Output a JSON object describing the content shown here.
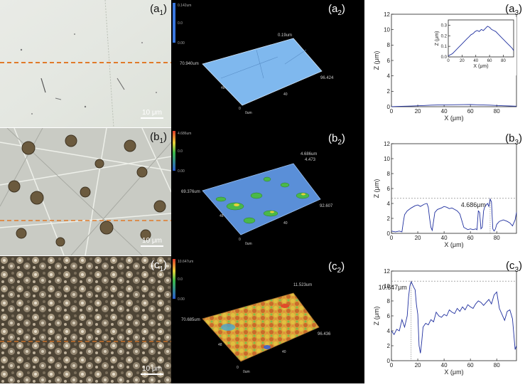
{
  "panels": {
    "a1": {
      "label_main": "(a",
      "label_sub": "1",
      "label_end": ")",
      "scale": "10 μm"
    },
    "b1": {
      "label_main": "(b",
      "label_sub": "1",
      "label_end": ")",
      "scale": "10 μm"
    },
    "c1": {
      "label_main": "(c",
      "label_sub": "1",
      "label_end": ")",
      "scale": "10 μm"
    },
    "a2": {
      "label_main": "(a",
      "label_sub": "2",
      "label_end": ")",
      "ticks": {
        "x": "96.424",
        "y": "70.940um",
        "z": "0.19um",
        "y2": "48",
        "x2": "40",
        "o": "0",
        "o2": "0um"
      },
      "colorbar": {
        "top": "0.142um",
        "mid": "0.0",
        "bottom": "0.00"
      }
    },
    "b2": {
      "label_main": "(b",
      "label_sub": "2",
      "label_end": ")",
      "ticks": {
        "x": "92.607",
        "y": "69.376um",
        "z": "4.473",
        "z2": "4.686um",
        "y2": "48",
        "x2": "40",
        "o": "0",
        "o2": "0um"
      },
      "colorbar": {
        "top": "4.686um",
        "mid": "0.0",
        "bottom": "0.00"
      }
    },
    "c2": {
      "label_main": "(c",
      "label_sub": "2",
      "label_end": ")",
      "ticks": {
        "x": "96.436",
        "y": "70.685um",
        "z": "11.523um",
        "y2": "48",
        "x2": "40",
        "o": "0",
        "o2": "0um"
      },
      "colorbar": {
        "top": "10.647um",
        "mid": "0.0",
        "bottom": "0.00"
      }
    },
    "a3": {
      "label_main": "(a",
      "label_sub": "3",
      "label_end": ")"
    },
    "b3": {
      "label_main": "(b",
      "label_sub": "3",
      "label_end": ")"
    },
    "c3": {
      "label_main": "(c",
      "label_sub": "3",
      "label_end": ")"
    }
  },
  "chart_data": [
    {
      "id": "a3",
      "type": "line",
      "xlabel": "X (μm)",
      "ylabel": "Z (μm)",
      "xlim": [
        0,
        95
      ],
      "ylim": [
        0,
        12
      ],
      "xticks": [
        0,
        20,
        40,
        60,
        80
      ],
      "yticks": [
        0,
        2,
        4,
        6,
        8,
        10,
        12
      ],
      "series": [
        {
          "color": "#1f2f9f",
          "x": [
            0,
            5,
            10,
            15,
            20,
            25,
            30,
            35,
            40,
            45,
            50,
            55,
            60,
            65,
            70,
            75,
            80,
            85,
            90,
            95
          ],
          "y": [
            0.01,
            0.04,
            0.06,
            0.08,
            0.12,
            0.16,
            0.2,
            0.22,
            0.24,
            0.25,
            0.26,
            0.27,
            0.28,
            0.25,
            0.22,
            0.2,
            0.16,
            0.12,
            0.09,
            0.06
          ]
        }
      ],
      "inset": {
        "xlabel": "X (μm)",
        "ylabel": "Z (μm)",
        "xlim": [
          0,
          95
        ],
        "ylim": [
          0,
          0.35
        ],
        "xticks": [
          0,
          20,
          40,
          60,
          80
        ],
        "yticks": [
          0.0,
          0.1,
          0.2,
          0.3
        ],
        "ytick_labels": [
          "0.0",
          "0.1",
          "0.2",
          "0.3"
        ],
        "series": [
          {
            "color": "#1f2f9f",
            "x": [
              0,
              3,
              6,
              9,
              12,
              15,
              18,
              21,
              24,
              27,
              30,
              33,
              36,
              39,
              42,
              45,
              48,
              51,
              54,
              57,
              60,
              63,
              66,
              69,
              72,
              75,
              78,
              81,
              84,
              87,
              90,
              93,
              95
            ],
            "y": [
              0.01,
              0.02,
              0.03,
              0.05,
              0.07,
              0.09,
              0.11,
              0.13,
              0.15,
              0.17,
              0.19,
              0.21,
              0.22,
              0.24,
              0.25,
              0.24,
              0.26,
              0.25,
              0.27,
              0.29,
              0.28,
              0.26,
              0.25,
              0.24,
              0.22,
              0.2,
              0.18,
              0.16,
              0.14,
              0.12,
              0.1,
              0.08,
              0.06
            ]
          }
        ]
      }
    },
    {
      "id": "b3",
      "type": "line",
      "xlabel": "X (μm)",
      "ylabel": "Z (μm)",
      "xlim": [
        0,
        95
      ],
      "ylim": [
        0,
        12
      ],
      "xticks": [
        0,
        20,
        40,
        60,
        80
      ],
      "yticks": [
        0,
        2,
        4,
        6,
        8,
        10,
        12
      ],
      "annotation": {
        "text": "4.686μm",
        "x": 75,
        "y": 4.686
      },
      "series": [
        {
          "color": "#1f2f9f",
          "x": [
            0,
            3,
            6,
            8,
            9,
            10,
            12,
            15,
            18,
            20,
            22,
            25,
            27,
            28,
            29,
            30,
            31,
            33,
            35,
            38,
            40,
            42,
            44,
            46,
            48,
            50,
            52,
            55,
            58,
            60,
            62,
            64,
            65,
            66,
            67,
            68,
            69,
            70,
            71,
            72,
            73,
            74,
            75,
            76,
            77,
            78,
            79,
            80,
            82,
            85,
            88,
            90,
            92,
            94,
            95
          ],
          "y": [
            0.3,
            0.2,
            0.3,
            0.2,
            1.5,
            2.5,
            3.0,
            3.4,
            3.7,
            3.8,
            3.6,
            3.9,
            4.0,
            3.5,
            2.0,
            0.8,
            0.4,
            2.8,
            3.2,
            3.4,
            3.6,
            3.5,
            3.3,
            3.4,
            3.2,
            3.0,
            2.6,
            0.8,
            0.5,
            0.6,
            0.5,
            0.6,
            0.5,
            3.0,
            2.8,
            0.6,
            0.8,
            3.0,
            3.6,
            3.8,
            4.0,
            3.6,
            4.6,
            4.2,
            0.6,
            0.3,
            0.6,
            1.2,
            1.6,
            1.8,
            1.6,
            1.4,
            1.0,
            1.8,
            2.8
          ]
        }
      ]
    },
    {
      "id": "c3",
      "type": "line",
      "xlabel": "X (μm)",
      "ylabel": "Z (μm)",
      "xlim": [
        0,
        95
      ],
      "ylim": [
        0,
        12
      ],
      "xticks": [
        0,
        20,
        40,
        60,
        80
      ],
      "yticks": [
        0,
        2,
        4,
        6,
        8,
        10,
        12
      ],
      "annotation": {
        "text": "10.647μm",
        "x": 15,
        "y": 10.647
      },
      "series": [
        {
          "color": "#1f2f9f",
          "x": [
            0,
            2,
            4,
            6,
            8,
            10,
            12,
            13,
            14,
            15,
            16,
            17,
            18,
            19,
            20,
            21,
            22,
            23,
            24,
            26,
            28,
            30,
            32,
            34,
            36,
            38,
            40,
            42,
            44,
            46,
            48,
            50,
            52,
            54,
            56,
            58,
            60,
            62,
            64,
            66,
            68,
            70,
            72,
            74,
            76,
            78,
            80,
            82,
            84,
            86,
            88,
            90,
            92,
            94,
            95
          ],
          "y": [
            4.0,
            3.5,
            4.2,
            4.0,
            5.5,
            4.5,
            6.0,
            8.5,
            10.0,
            10.6,
            10.2,
            9.8,
            9.5,
            7.5,
            6.2,
            2.0,
            1.0,
            2.5,
            4.5,
            5.0,
            4.8,
            5.5,
            5.2,
            6.5,
            6.0,
            5.8,
            6.2,
            6.0,
            6.8,
            6.5,
            6.3,
            7.0,
            6.6,
            7.2,
            6.8,
            7.5,
            7.2,
            7.0,
            7.6,
            8.0,
            7.8,
            7.4,
            7.8,
            8.2,
            7.6,
            8.8,
            9.2,
            7.0,
            6.2,
            5.4,
            6.6,
            6.8,
            5.6,
            1.5,
            2.0
          ]
        }
      ]
    }
  ]
}
